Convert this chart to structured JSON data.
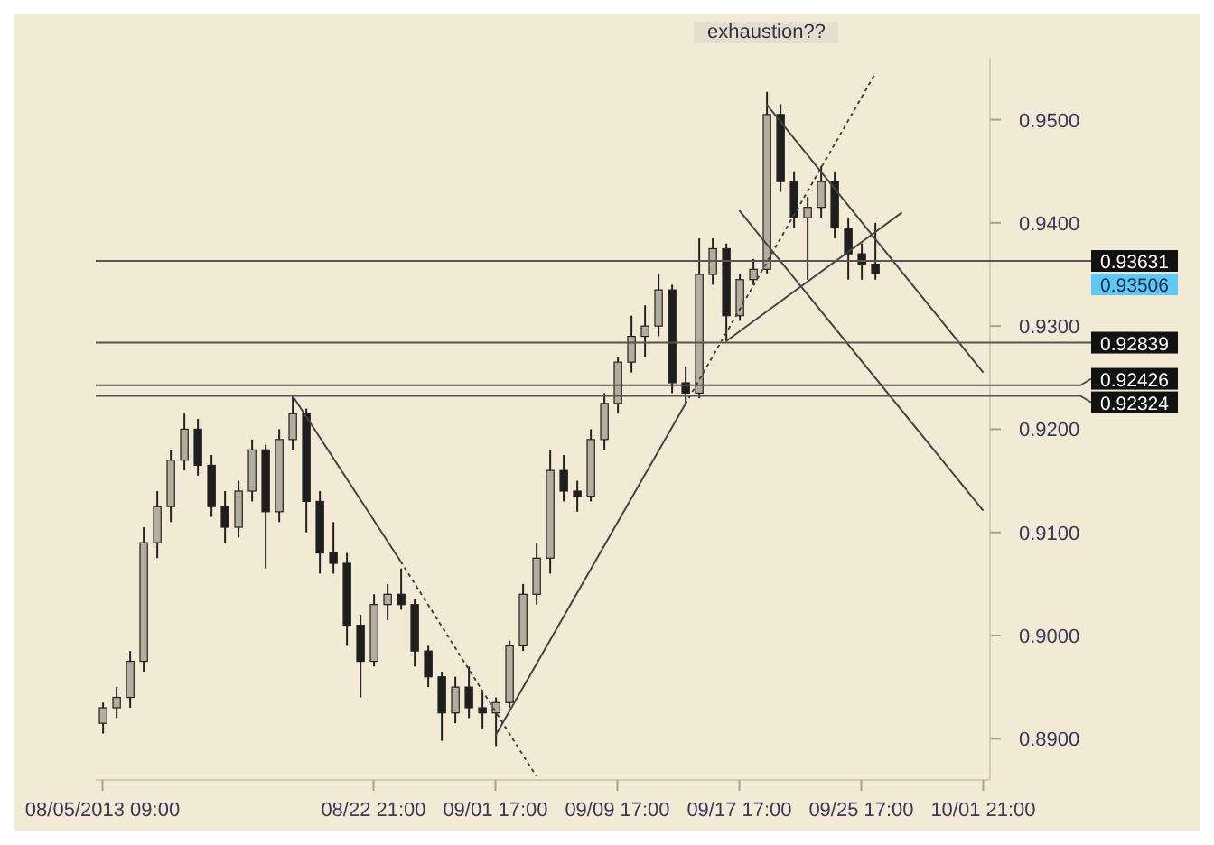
{
  "chart_data": {
    "type": "candlestick",
    "categories": [
      "08/05/2013 09:00",
      null,
      null,
      null,
      null,
      null,
      null,
      null,
      null,
      null,
      null,
      null,
      null,
      null,
      null,
      null,
      null,
      null,
      null,
      null,
      "08/22 21:00",
      null,
      null,
      null,
      null,
      null,
      null,
      null,
      null,
      "09/01 17:00",
      null,
      null,
      null,
      null,
      null,
      null,
      null,
      null,
      "09/09 17:00",
      null,
      null,
      null,
      null,
      null,
      null,
      null,
      null,
      "09/17 17:00",
      null,
      null,
      null,
      null,
      null,
      null,
      null,
      null,
      "09/25 17:00",
      null,
      null,
      null,
      null,
      null,
      null,
      null,
      null,
      "10/01 21:00"
    ],
    "ohlc": [
      [
        0.8915,
        0.8935,
        0.8905,
        0.893
      ],
      [
        0.893,
        0.895,
        0.892,
        0.894
      ],
      [
        0.894,
        0.8985,
        0.893,
        0.8975
      ],
      [
        0.8975,
        0.9105,
        0.8965,
        0.909
      ],
      [
        0.909,
        0.914,
        0.9075,
        0.9125
      ],
      [
        0.9125,
        0.918,
        0.911,
        0.917
      ],
      [
        0.917,
        0.9215,
        0.916,
        0.92
      ],
      [
        0.92,
        0.921,
        0.9155,
        0.9165
      ],
      [
        0.9165,
        0.9175,
        0.9115,
        0.9125
      ],
      [
        0.9125,
        0.914,
        0.909,
        0.9105
      ],
      [
        0.9105,
        0.915,
        0.9095,
        0.914
      ],
      [
        0.914,
        0.919,
        0.913,
        0.918
      ],
      [
        0.918,
        0.9185,
        0.9065,
        0.912
      ],
      [
        0.912,
        0.92,
        0.911,
        0.919
      ],
      [
        0.919,
        0.9232,
        0.918,
        0.9215
      ],
      [
        0.9215,
        0.922,
        0.91,
        0.913
      ],
      [
        0.913,
        0.914,
        0.906,
        0.908
      ],
      [
        0.908,
        0.911,
        0.906,
        0.907
      ],
      [
        0.907,
        0.908,
        0.899,
        0.901
      ],
      [
        0.901,
        0.902,
        0.894,
        0.8975
      ],
      [
        0.8975,
        0.904,
        0.897,
        0.903
      ],
      [
        0.903,
        0.905,
        0.9015,
        0.904
      ],
      [
        0.904,
        0.9065,
        0.9025,
        0.903
      ],
      [
        0.903,
        0.9035,
        0.897,
        0.8985
      ],
      [
        0.8985,
        0.899,
        0.895,
        0.896
      ],
      [
        0.896,
        0.8965,
        0.8898,
        0.8925
      ],
      [
        0.8925,
        0.896,
        0.8915,
        0.895
      ],
      [
        0.895,
        0.897,
        0.892,
        0.893
      ],
      [
        0.893,
        0.8945,
        0.891,
        0.8925
      ],
      [
        0.8925,
        0.894,
        0.8893,
        0.8935
      ],
      [
        0.8935,
        0.8995,
        0.893,
        0.899
      ],
      [
        0.899,
        0.905,
        0.8985,
        0.904
      ],
      [
        0.904,
        0.909,
        0.903,
        0.9075
      ],
      [
        0.9075,
        0.918,
        0.906,
        0.916
      ],
      [
        0.916,
        0.9175,
        0.913,
        0.914
      ],
      [
        0.914,
        0.915,
        0.912,
        0.9135
      ],
      [
        0.9135,
        0.92,
        0.913,
        0.919
      ],
      [
        0.919,
        0.9235,
        0.918,
        0.9225
      ],
      [
        0.9225,
        0.927,
        0.9215,
        0.9265
      ],
      [
        0.9265,
        0.931,
        0.9255,
        0.929
      ],
      [
        0.929,
        0.932,
        0.927,
        0.93
      ],
      [
        0.93,
        0.935,
        0.929,
        0.9335
      ],
      [
        0.9335,
        0.934,
        0.9235,
        0.9245
      ],
      [
        0.9245,
        0.926,
        0.9225,
        0.9235
      ],
      [
        0.9235,
        0.9385,
        0.923,
        0.935
      ],
      [
        0.935,
        0.9385,
        0.934,
        0.9375
      ],
      [
        0.9375,
        0.938,
        0.9285,
        0.931
      ],
      [
        0.931,
        0.935,
        0.9305,
        0.9345
      ],
      [
        0.9345,
        0.9365,
        0.934,
        0.9355
      ],
      [
        0.9355,
        0.9527,
        0.935,
        0.9505
      ],
      [
        0.9505,
        0.9515,
        0.943,
        0.944
      ],
      [
        0.944,
        0.945,
        0.9395,
        0.9405
      ],
      [
        0.9405,
        0.9425,
        0.9345,
        0.9415
      ],
      [
        0.9415,
        0.9455,
        0.9405,
        0.944
      ],
      [
        0.944,
        0.945,
        0.9385,
        0.9395
      ],
      [
        0.9395,
        0.9405,
        0.9345,
        0.937
      ],
      [
        0.937,
        0.938,
        0.9345,
        0.936
      ],
      [
        0.936,
        0.94,
        0.9345,
        0.93506
      ],
      null,
      null,
      null,
      null,
      null,
      null,
      null,
      null
    ],
    "ylim": [
      0.886,
      0.956
    ],
    "yticks": [
      {
        "value": 0.89,
        "label": "0.8900"
      },
      {
        "value": 0.9,
        "label": "0.9000"
      },
      {
        "value": 0.91,
        "label": "0.9100"
      },
      {
        "value": 0.92,
        "label": "0.9200"
      },
      {
        "value": 0.93,
        "label": "0.9300"
      },
      {
        "value": 0.94,
        "label": "0.9400"
      },
      {
        "value": 0.95,
        "label": "0.9500"
      }
    ],
    "ref_lines": [
      {
        "axis": "y",
        "value": 0.93631,
        "label": "0.93631",
        "color": "#555555"
      },
      {
        "axis": "y",
        "value": 0.92839,
        "label": "0.92839",
        "color": "#555555"
      },
      {
        "axis": "y",
        "value": 0.92426,
        "label": "0.92426",
        "color": "#555555"
      },
      {
        "axis": "y",
        "value": 0.92324,
        "label": "0.92324",
        "color": "#555555"
      }
    ],
    "annotations": [
      "exhaustion??",
      "0.93506"
    ],
    "series": [
      {
        "type": "line",
        "color": "#444444",
        "line_style": "solid",
        "values": [
          null,
          null,
          null,
          null,
          null,
          null,
          null,
          null,
          null,
          null,
          null,
          null,
          null,
          null,
          0.9233,
          null,
          null,
          null,
          null,
          null,
          null,
          null,
          0.9072,
          null,
          null,
          null,
          null,
          null,
          null,
          null,
          null,
          null,
          null,
          null,
          null,
          null,
          null,
          null,
          null,
          null,
          null,
          null,
          null,
          null,
          null,
          null,
          null,
          null,
          null,
          null,
          null,
          null,
          null,
          null,
          null,
          null,
          null,
          null,
          null,
          null,
          null,
          null,
          null,
          null,
          null,
          null
        ]
      },
      {
        "type": "line",
        "color": "#444444",
        "line_style": "dotted",
        "values": [
          null,
          null,
          null,
          null,
          null,
          null,
          null,
          null,
          null,
          null,
          null,
          null,
          null,
          null,
          null,
          null,
          null,
          null,
          null,
          null,
          null,
          null,
          0.9072,
          null,
          null,
          null,
          null,
          null,
          null,
          null,
          null,
          null,
          0.8864,
          null,
          null,
          null,
          null,
          null,
          null,
          null,
          null,
          null,
          null,
          null,
          null,
          null,
          null,
          null,
          null,
          null,
          null,
          null,
          null,
          null,
          null,
          null,
          null,
          null,
          null,
          null,
          null,
          null,
          null,
          null,
          null,
          null
        ]
      },
      {
        "type": "line",
        "color": "#444444",
        "line_style": "solid",
        "values": [
          null,
          null,
          null,
          null,
          null,
          null,
          null,
          null,
          null,
          null,
          null,
          null,
          null,
          null,
          null,
          null,
          null,
          null,
          null,
          null,
          null,
          null,
          null,
          null,
          null,
          null,
          null,
          null,
          null,
          0.8903,
          null,
          null,
          null,
          null,
          null,
          null,
          null,
          null,
          null,
          null,
          null,
          null,
          null,
          0.9224,
          null,
          null,
          null,
          null,
          null,
          null,
          null,
          null,
          null,
          null,
          null,
          null,
          null,
          null,
          null,
          null,
          null,
          null,
          null,
          null,
          null,
          null
        ]
      },
      {
        "type": "line",
        "color": "#444444",
        "line_style": "dotted",
        "values": [
          null,
          null,
          null,
          null,
          null,
          null,
          null,
          null,
          null,
          null,
          null,
          null,
          null,
          null,
          null,
          null,
          null,
          null,
          null,
          null,
          null,
          null,
          null,
          null,
          null,
          null,
          null,
          null,
          null,
          null,
          null,
          null,
          null,
          null,
          null,
          null,
          null,
          null,
          null,
          null,
          null,
          null,
          null,
          0.9224,
          null,
          null,
          null,
          null,
          null,
          null,
          null,
          null,
          null,
          null,
          null,
          null,
          null,
          0.9544,
          null,
          null,
          null,
          null,
          null,
          null,
          null,
          null
        ]
      },
      {
        "type": "line",
        "color": "#444444",
        "line_style": "solid",
        "values": [
          null,
          null,
          null,
          null,
          null,
          null,
          null,
          null,
          null,
          null,
          null,
          null,
          null,
          null,
          null,
          null,
          null,
          null,
          null,
          null,
          null,
          null,
          null,
          null,
          null,
          null,
          null,
          null,
          null,
          null,
          null,
          null,
          null,
          null,
          null,
          null,
          null,
          null,
          null,
          null,
          null,
          null,
          null,
          null,
          null,
          null,
          null,
          null,
          null,
          0.9515,
          null,
          null,
          null,
          null,
          null,
          null,
          null,
          null,
          null,
          null,
          null,
          null,
          null,
          null,
          null,
          0.9255
        ]
      },
      {
        "type": "line",
        "color": "#444444",
        "line_style": "solid",
        "values": [
          null,
          null,
          null,
          null,
          null,
          null,
          null,
          null,
          null,
          null,
          null,
          null,
          null,
          null,
          null,
          null,
          null,
          null,
          null,
          null,
          null,
          null,
          null,
          null,
          null,
          null,
          null,
          null,
          null,
          null,
          null,
          null,
          null,
          null,
          null,
          null,
          null,
          null,
          null,
          null,
          null,
          null,
          null,
          null,
          null,
          null,
          null,
          0.9412,
          null,
          null,
          null,
          null,
          null,
          null,
          null,
          null,
          null,
          null,
          null,
          null,
          null,
          null,
          null,
          null,
          null,
          0.9121
        ]
      },
      {
        "type": "line",
        "color": "#444444",
        "line_style": "solid",
        "values": [
          null,
          null,
          null,
          null,
          null,
          null,
          null,
          null,
          null,
          null,
          null,
          null,
          null,
          null,
          null,
          null,
          null,
          null,
          null,
          null,
          null,
          null,
          null,
          null,
          null,
          null,
          null,
          null,
          null,
          null,
          null,
          null,
          null,
          null,
          null,
          null,
          null,
          null,
          null,
          null,
          null,
          null,
          null,
          null,
          null,
          null,
          0.9285,
          null,
          null,
          null,
          null,
          null,
          null,
          null,
          null,
          null,
          null,
          null,
          null,
          0.941,
          null,
          null,
          null,
          null,
          null,
          null
        ]
      }
    ]
  }
}
